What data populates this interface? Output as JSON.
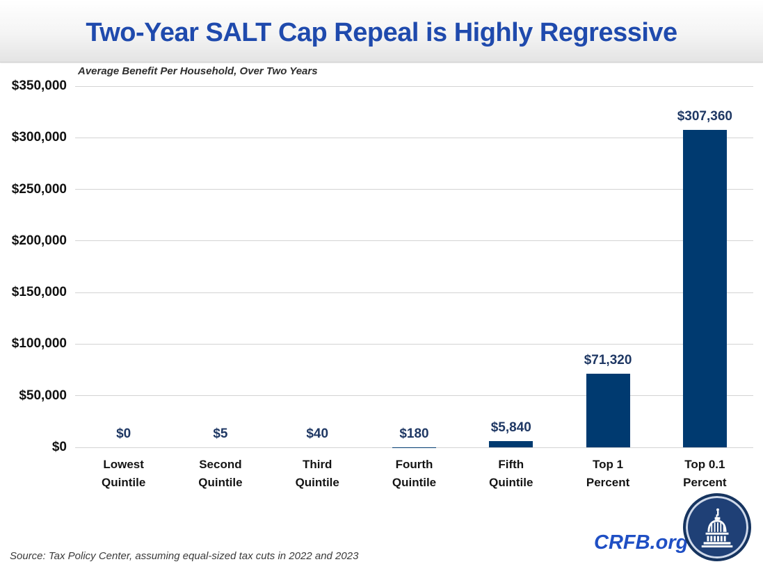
{
  "page": {
    "title": "Two-Year SALT Cap Repeal is Highly Regressive",
    "subtitle": "Average Benefit Per Household, Over Two Years",
    "source": "Source: Tax Policy Center, assuming equal-sized tax cuts in 2022 and 2023",
    "brand": "CRFB.org",
    "logo_icon": "capitol-dome-icon"
  },
  "colors": {
    "title_blue": "#1f4aad",
    "bar_navy": "#003a70",
    "value_label_navy": "#1f3864",
    "gridline_gray": "#d3d3d3",
    "brand_blue": "#1f4fc4",
    "logo_navy": "#1f4076"
  },
  "chart_data": {
    "type": "bar",
    "title": "Two-Year SALT Cap Repeal is Highly Regressive",
    "subtitle": "Average Benefit Per Household, Over Two Years",
    "categories": [
      "Lowest Quintile",
      "Second Quintile",
      "Third Quintile",
      "Fourth Quintile",
      "Fifth Quintile",
      "Top 1 Percent",
      "Top 0.1 Percent"
    ],
    "category_lines": [
      [
        "Lowest",
        "Quintile"
      ],
      [
        "Second",
        "Quintile"
      ],
      [
        "Third",
        "Quintile"
      ],
      [
        "Fourth",
        "Quintile"
      ],
      [
        "Fifth",
        "Quintile"
      ],
      [
        "Top 1",
        "Percent"
      ],
      [
        "Top 0.1",
        "Percent"
      ]
    ],
    "values": [
      0,
      5,
      40,
      180,
      5840,
      71320,
      307360
    ],
    "value_labels": [
      "$0",
      "$5",
      "$40",
      "$180",
      "$5,840",
      "$71,320",
      "$307,360"
    ],
    "xlabel": "",
    "ylabel": "",
    "ylim": [
      0,
      350000
    ],
    "ytick_step": 50000,
    "ytick_labels": [
      "$0",
      "$50,000",
      "$100,000",
      "$150,000",
      "$200,000",
      "$250,000",
      "$300,000",
      "$350,000"
    ],
    "grid": true,
    "legend": false,
    "bar_color": "#003a70"
  }
}
